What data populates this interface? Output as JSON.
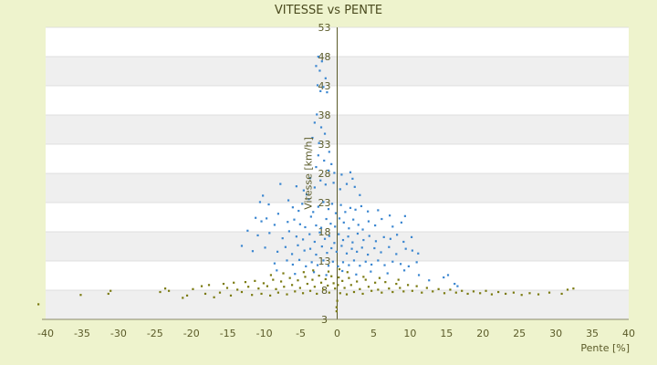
{
  "chart_data": {
    "type": "scatter",
    "title": "VITESSE vs PENTE",
    "xlabel": "Pente [%]",
    "ylabel": "Vitesse [km/h]",
    "xlim": [
      -40,
      40
    ],
    "ylim": [
      3,
      53
    ],
    "x_ticks": [
      -40,
      -35,
      -30,
      -25,
      -20,
      -15,
      -10,
      -5,
      0,
      5,
      10,
      15,
      20,
      25,
      30,
      35,
      40
    ],
    "y_ticks": [
      3,
      8,
      13,
      18,
      23,
      28,
      33,
      38,
      43,
      48,
      53
    ],
    "grid": true,
    "legend": "none",
    "colors": {
      "background": "#eef3cd",
      "plot_band_light": "#ffffff",
      "plot_band_dark": "#efefef",
      "axis": "#5a5a28",
      "series_blue": "#3a86d0",
      "series_olive": "#7a7a10"
    },
    "series": [
      {
        "color": "#3a86d0",
        "points": [
          [
            -2.6,
            48
          ],
          [
            -2.1,
            47.2
          ],
          [
            -2.9,
            46.4
          ],
          [
            -2.4,
            45.6
          ],
          [
            -1.6,
            44.3
          ],
          [
            -2.7,
            43.1
          ],
          [
            -1.9,
            42.8
          ],
          [
            -2.3,
            42.1
          ],
          [
            -1.4,
            41.9
          ],
          [
            -2.8,
            38.1
          ],
          [
            -3.1,
            36.7
          ],
          [
            -2.2,
            35.9
          ],
          [
            -1.7,
            34.8
          ],
          [
            -3.4,
            34.1
          ],
          [
            -2.5,
            33.2
          ],
          [
            -1.1,
            31.7
          ],
          [
            -2.6,
            31.1
          ],
          [
            -1.8,
            30.2
          ],
          [
            -0.8,
            29.6
          ],
          [
            -2.9,
            29.1
          ],
          [
            -1.2,
            28.5
          ],
          [
            -0.4,
            28.1
          ],
          [
            0.6,
            27.8
          ],
          [
            1.8,
            28.2
          ],
          [
            2.1,
            27.1
          ],
          [
            -7.8,
            26.2
          ],
          [
            -5.6,
            25.8
          ],
          [
            -4.6,
            25.1
          ],
          [
            -4.2,
            24.4
          ],
          [
            -3.1,
            25.6
          ],
          [
            -3.7,
            27.2
          ],
          [
            -2.3,
            26.8
          ],
          [
            -1.6,
            26.1
          ],
          [
            -0.5,
            26.4
          ],
          [
            0.4,
            25.3
          ],
          [
            1.3,
            26.2
          ],
          [
            2.4,
            25.7
          ],
          [
            3.1,
            24.3
          ],
          [
            -10.2,
            24.2
          ],
          [
            -10.6,
            23.1
          ],
          [
            -9.4,
            22.7
          ],
          [
            -8.1,
            21.1
          ],
          [
            -6.7,
            23.4
          ],
          [
            -6.1,
            22.2
          ],
          [
            -5.3,
            21.6
          ],
          [
            -4.8,
            22.8
          ],
          [
            -3.9,
            23.6
          ],
          [
            -3.3,
            21.4
          ],
          [
            -2.6,
            22.3
          ],
          [
            -1.9,
            23.1
          ],
          [
            -1.2,
            21.9
          ],
          [
            -0.7,
            22.8
          ],
          [
            -0.2,
            21.2
          ],
          [
            0.5,
            22.6
          ],
          [
            1.1,
            21.4
          ],
          [
            1.8,
            22.1
          ],
          [
            2.5,
            21.8
          ],
          [
            3.3,
            22.4
          ],
          [
            4.2,
            21.5
          ],
          [
            5.6,
            21.7
          ],
          [
            -11.2,
            20.4
          ],
          [
            -10.4,
            19.8
          ],
          [
            -9.7,
            20.3
          ],
          [
            -8.6,
            19.2
          ],
          [
            -6.8,
            19.7
          ],
          [
            -5.9,
            20.1
          ],
          [
            -5.1,
            19.3
          ],
          [
            -4.4,
            18.8
          ],
          [
            -3.6,
            20.6
          ],
          [
            -2.9,
            19.1
          ],
          [
            -2.2,
            18.7
          ],
          [
            -1.5,
            20.2
          ],
          [
            -0.9,
            19.4
          ],
          [
            -0.3,
            18.9
          ],
          [
            0.3,
            20.3
          ],
          [
            0.9,
            19.6
          ],
          [
            1.6,
            18.6
          ],
          [
            2.2,
            20.1
          ],
          [
            2.9,
            19.2
          ],
          [
            3.5,
            18.4
          ],
          [
            4.3,
            19.8
          ],
          [
            5.2,
            19.1
          ],
          [
            6.1,
            20.2
          ],
          [
            7.2,
            20.8
          ],
          [
            7.6,
            18.9
          ],
          [
            8.8,
            19.6
          ],
          [
            9.3,
            20.7
          ],
          [
            -12.3,
            18.2
          ],
          [
            -10.9,
            17.4
          ],
          [
            -9.3,
            17.8
          ],
          [
            -7.5,
            16.9
          ],
          [
            -6.6,
            18.1
          ],
          [
            -5.6,
            17.2
          ],
          [
            -4.7,
            16.7
          ],
          [
            -3.8,
            17.6
          ],
          [
            -3.1,
            16.3
          ],
          [
            -2.4,
            17.9
          ],
          [
            -1.7,
            16.8
          ],
          [
            -1.1,
            17.3
          ],
          [
            -0.4,
            16.1
          ],
          [
            0.2,
            17.6
          ],
          [
            0.8,
            16.6
          ],
          [
            1.5,
            17.2
          ],
          [
            2.1,
            16.2
          ],
          [
            2.8,
            17.7
          ],
          [
            3.6,
            16.6
          ],
          [
            4.4,
            17.3
          ],
          [
            5.3,
            16.4
          ],
          [
            6.4,
            17.1
          ],
          [
            7.3,
            16.8
          ],
          [
            8.2,
            17.5
          ],
          [
            9.1,
            16.3
          ],
          [
            10.2,
            17.1
          ],
          [
            -13.1,
            15.6
          ],
          [
            -11.6,
            14.7
          ],
          [
            -9.9,
            15.3
          ],
          [
            -8.2,
            14.6
          ],
          [
            -7.1,
            15.4
          ],
          [
            -6.2,
            14.2
          ],
          [
            -5.4,
            15.7
          ],
          [
            -4.5,
            14.8
          ],
          [
            -3.7,
            15.1
          ],
          [
            -2.9,
            14.1
          ],
          [
            -2.1,
            15.5
          ],
          [
            -1.4,
            14.4
          ],
          [
            -0.8,
            15.2
          ],
          [
            -0.1,
            14.6
          ],
          [
            0.6,
            15.6
          ],
          [
            1.3,
            14.3
          ],
          [
            2.0,
            15.1
          ],
          [
            2.7,
            14.6
          ],
          [
            3.4,
            15.3
          ],
          [
            4.2,
            14.1
          ],
          [
            5.1,
            15.2
          ],
          [
            6.0,
            14.5
          ],
          [
            7.1,
            15.4
          ],
          [
            8.1,
            14.2
          ],
          [
            9.4,
            15.1
          ],
          [
            10.3,
            14.8
          ],
          [
            11.1,
            14.3
          ],
          [
            -8.6,
            12.6
          ],
          [
            -6.9,
            13.1
          ],
          [
            -6.1,
            12.4
          ],
          [
            -5.2,
            13.2
          ],
          [
            -4.3,
            12.1
          ],
          [
            -3.5,
            12.8
          ],
          [
            -2.7,
            12.3
          ],
          [
            -1.9,
            13.1
          ],
          [
            -1.2,
            12.2
          ],
          [
            -0.6,
            12.9
          ],
          [
            0.1,
            12.1
          ],
          [
            0.8,
            12.8
          ],
          [
            1.6,
            12.3
          ],
          [
            2.3,
            13.1
          ],
          [
            3.1,
            12.2
          ],
          [
            3.9,
            12.9
          ],
          [
            4.7,
            12.4
          ],
          [
            5.6,
            13.1
          ],
          [
            6.5,
            12.3
          ],
          [
            7.6,
            12.9
          ],
          [
            8.7,
            12.5
          ],
          [
            9.8,
            12.1
          ],
          [
            10.9,
            12.8
          ],
          [
            -8.3,
            11.4
          ],
          [
            -5.8,
            10.8
          ],
          [
            -3.2,
            11.1
          ],
          [
            -1.5,
            10.6
          ],
          [
            0.7,
            11.3
          ],
          [
            2.6,
            10.7
          ],
          [
            4.6,
            11.2
          ],
          [
            6.9,
            10.9
          ],
          [
            9.2,
            11.4
          ],
          [
            11.2,
            10.6
          ],
          [
            12.6,
            9.7
          ],
          [
            14.6,
            10.2
          ],
          [
            15.2,
            10.6
          ],
          [
            16.1,
            9.1
          ],
          [
            16.5,
            8.7
          ]
        ]
      },
      {
        "color": "#7a7a10",
        "points": [
          [
            -41,
            5.6
          ],
          [
            -35.2,
            7.2
          ],
          [
            -31.4,
            7.4
          ],
          [
            -31.1,
            7.9
          ],
          [
            -24.3,
            7.7
          ],
          [
            -23.6,
            8.3
          ],
          [
            -23.1,
            7.9
          ],
          [
            -21.2,
            6.7
          ],
          [
            -20.6,
            7.1
          ],
          [
            -19.8,
            8.2
          ],
          [
            -18.6,
            8.7
          ],
          [
            -18.1,
            7.4
          ],
          [
            -17.6,
            8.9
          ],
          [
            -16.9,
            6.8
          ],
          [
            -16.1,
            7.6
          ],
          [
            -15.6,
            9.1
          ],
          [
            -15.1,
            8.4
          ],
          [
            -14.6,
            7.1
          ],
          [
            -14.2,
            9.3
          ],
          [
            -13.7,
            8.1
          ],
          [
            -13.1,
            7.7
          ],
          [
            -12.6,
            9.4
          ],
          [
            -12.2,
            8.6
          ],
          [
            -11.7,
            7.2
          ],
          [
            -11.3,
            9.6
          ],
          [
            -10.8,
            8.3
          ],
          [
            -10.4,
            7.4
          ],
          [
            -10.1,
            9.2
          ],
          [
            -9.6,
            8.7
          ],
          [
            -9.2,
            7.1
          ],
          [
            -8.8,
            9.8
          ],
          [
            -8.4,
            8.2
          ],
          [
            -8.1,
            7.6
          ],
          [
            -7.7,
            9.5
          ],
          [
            -7.3,
            8.6
          ],
          [
            -6.9,
            7.3
          ],
          [
            -6.5,
            10.1
          ],
          [
            -6.2,
            8.9
          ],
          [
            -5.8,
            7.8
          ],
          [
            -5.4,
            9.7
          ],
          [
            -5.1,
            8.4
          ],
          [
            -4.7,
            7.5
          ],
          [
            -4.4,
            10.3
          ],
          [
            -4.1,
            9.1
          ],
          [
            -3.7,
            7.9
          ],
          [
            -3.4,
            9.8
          ],
          [
            -3.1,
            8.6
          ],
          [
            -2.8,
            7.4
          ],
          [
            -2.5,
            10.5
          ],
          [
            -2.2,
            9.3
          ],
          [
            -1.9,
            8.1
          ],
          [
            -1.6,
            9.9
          ],
          [
            -1.3,
            8.8
          ],
          [
            -1.1,
            7.6
          ],
          [
            -0.8,
            10.4
          ],
          [
            -0.5,
            9.2
          ],
          [
            -0.3,
            8.3
          ],
          [
            -0.1,
            5.1
          ],
          [
            -0.1,
            4.4
          ],
          [
            0,
            6.2
          ],
          [
            0.1,
            8.9
          ],
          [
            0.2,
            10.2
          ],
          [
            0.4,
            7.5
          ],
          [
            0.7,
            9.6
          ],
          [
            1.0,
            8.4
          ],
          [
            1.3,
            7.3
          ],
          [
            1.6,
            10.1
          ],
          [
            1.9,
            8.9
          ],
          [
            2.3,
            7.7
          ],
          [
            2.7,
            9.5
          ],
          [
            3.1,
            8.2
          ],
          [
            3.5,
            7.4
          ],
          [
            3.9,
            9.8
          ],
          [
            4.3,
            8.6
          ],
          [
            4.7,
            7.9
          ],
          [
            5.2,
            9.3
          ],
          [
            5.6,
            8.1
          ],
          [
            6.1,
            7.6
          ],
          [
            6.6,
            9.4
          ],
          [
            7.1,
            8.3
          ],
          [
            7.6,
            7.7
          ],
          [
            8.1,
            9.1
          ],
          [
            8.6,
            8.4
          ],
          [
            9.1,
            7.8
          ],
          [
            9.7,
            8.9
          ],
          [
            10.3,
            7.9
          ],
          [
            10.9,
            8.7
          ],
          [
            11.6,
            7.6
          ],
          [
            12.3,
            8.4
          ],
          [
            13.1,
            7.8
          ],
          [
            13.9,
            8.2
          ],
          [
            14.7,
            7.5
          ],
          [
            15.5,
            8.1
          ],
          [
            16.3,
            7.6
          ],
          [
            17.1,
            7.9
          ],
          [
            17.9,
            7.4
          ],
          [
            18.7,
            7.8
          ],
          [
            19.6,
            7.5
          ],
          [
            20.4,
            7.9
          ],
          [
            21.2,
            7.3
          ],
          [
            22.1,
            7.7
          ],
          [
            23.1,
            7.4
          ],
          [
            24.2,
            7.6
          ],
          [
            25.3,
            7.2
          ],
          [
            26.4,
            7.5
          ],
          [
            27.6,
            7.3
          ],
          [
            29.1,
            7.6
          ],
          [
            30.8,
            7.4
          ],
          [
            31.6,
            8.1
          ],
          [
            32.4,
            8.3
          ],
          [
            -4.6,
            11.1
          ],
          [
            -3.3,
            11.4
          ],
          [
            -1.2,
            11.2
          ],
          [
            0.3,
            11.6
          ],
          [
            1.4,
            11.1
          ],
          [
            -9.1,
            10.6
          ],
          [
            -7.4,
            10.9
          ],
          [
            3.6,
            10.3
          ],
          [
            5.8,
            10.1
          ],
          [
            8.4,
            9.8
          ]
        ]
      }
    ]
  }
}
